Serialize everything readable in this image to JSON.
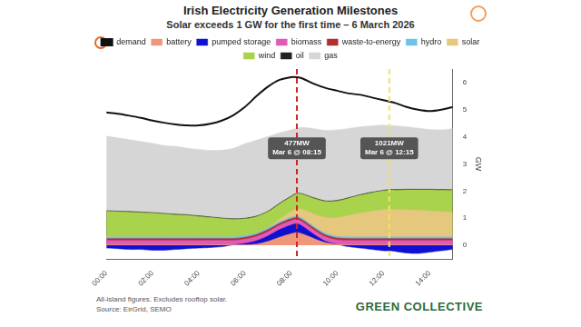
{
  "chart_data": {
    "type": "area",
    "title": "Irish Electricity Generation Milestones",
    "subtitle": "Solar exceeds 1 GW for the first time – 6 March 2026",
    "y_label": "GW",
    "x": [
      0,
      0.5,
      1,
      1.5,
      2,
      2.5,
      3,
      3.5,
      4,
      4.5,
      5,
      5.5,
      6,
      6.5,
      7,
      7.5,
      8,
      8.25,
      8.5,
      9,
      9.5,
      10,
      10.5,
      11,
      11.5,
      12,
      12.25,
      12.5,
      13,
      13.5,
      14,
      14.5,
      15
    ],
    "xlim": [
      0,
      15
    ],
    "xticks": [
      {
        "value": 0,
        "label": "00:00"
      },
      {
        "value": 2,
        "label": "02:00"
      },
      {
        "value": 4,
        "label": "04:00"
      },
      {
        "value": 6,
        "label": "06:00"
      },
      {
        "value": 8,
        "label": "08:00"
      },
      {
        "value": 10,
        "label": "10:00"
      },
      {
        "value": 12,
        "label": "12:00"
      },
      {
        "value": 14,
        "label": "14:00"
      }
    ],
    "ylim": [
      -0.5,
      6.5
    ],
    "yticks": [
      0,
      1,
      2,
      3,
      4,
      5,
      6
    ],
    "grid": false,
    "legend": "top",
    "stacked": true,
    "series": [
      {
        "name": "demand",
        "type": "line",
        "color": "#111111",
        "values": [
          4.9,
          4.85,
          4.78,
          4.7,
          4.6,
          4.52,
          4.46,
          4.42,
          4.42,
          4.48,
          4.6,
          4.8,
          5.1,
          5.5,
          5.85,
          6.1,
          6.2,
          6.2,
          6.15,
          5.95,
          5.8,
          5.7,
          5.6,
          5.55,
          5.45,
          5.35,
          5.3,
          5.25,
          5.1,
          5.0,
          4.95,
          5.0,
          5.1
        ]
      },
      {
        "name": "battery",
        "type": "area",
        "color": "#f0967a",
        "values": [
          0.02,
          0.02,
          0.02,
          0.02,
          0.02,
          0.02,
          0.02,
          0.02,
          0.02,
          0.02,
          0.02,
          0.02,
          0.02,
          0.05,
          0.15,
          0.3,
          0.43,
          0.477,
          0.42,
          0.25,
          0.1,
          0.04,
          0.02,
          0.02,
          0.02,
          0.02,
          0.02,
          0.02,
          0.02,
          0.02,
          0.02,
          0.02,
          0.02
        ]
      },
      {
        "name": "pumped storage",
        "type": "area",
        "color": "#1010d0",
        "values": [
          -0.1,
          -0.12,
          -0.15,
          -0.15,
          -0.18,
          -0.18,
          -0.15,
          -0.12,
          -0.1,
          -0.08,
          -0.05,
          0,
          0.05,
          0.12,
          0.2,
          0.28,
          0.32,
          0.32,
          0.28,
          0.15,
          0.05,
          0,
          -0.05,
          -0.1,
          -0.15,
          -0.2,
          -0.2,
          -0.22,
          -0.28,
          -0.3,
          -0.25,
          -0.2,
          -0.15
        ]
      },
      {
        "name": "biomass",
        "type": "area",
        "color": "#e05ab8",
        "values": [
          0.16,
          0.16,
          0.16,
          0.16,
          0.16,
          0.16,
          0.16,
          0.16,
          0.16,
          0.16,
          0.16,
          0.16,
          0.16,
          0.16,
          0.16,
          0.16,
          0.16,
          0.16,
          0.16,
          0.16,
          0.16,
          0.16,
          0.16,
          0.16,
          0.16,
          0.16,
          0.16,
          0.16,
          0.16,
          0.16,
          0.16,
          0.16,
          0.16
        ]
      },
      {
        "name": "waste-to-energy",
        "type": "area",
        "color": "#b02e2e",
        "values": [
          0.07,
          0.07,
          0.07,
          0.07,
          0.07,
          0.07,
          0.07,
          0.07,
          0.07,
          0.07,
          0.07,
          0.07,
          0.07,
          0.07,
          0.07,
          0.07,
          0.07,
          0.07,
          0.07,
          0.07,
          0.07,
          0.07,
          0.07,
          0.07,
          0.07,
          0.07,
          0.07,
          0.07,
          0.07,
          0.07,
          0.07,
          0.07,
          0.07
        ]
      },
      {
        "name": "hydro",
        "type": "area",
        "color": "#6cc3e8",
        "values": [
          0.06,
          0.06,
          0.06,
          0.06,
          0.06,
          0.06,
          0.06,
          0.06,
          0.06,
          0.06,
          0.06,
          0.06,
          0.06,
          0.06,
          0.06,
          0.06,
          0.06,
          0.06,
          0.06,
          0.06,
          0.06,
          0.06,
          0.06,
          0.06,
          0.06,
          0.06,
          0.06,
          0.06,
          0.06,
          0.06,
          0.06,
          0.06,
          0.06
        ]
      },
      {
        "name": "solar",
        "type": "area",
        "color": "#e6c77e",
        "values": [
          0,
          0,
          0,
          0,
          0,
          0,
          0,
          0,
          0,
          0,
          0,
          0,
          0,
          0,
          0.02,
          0.1,
          0.2,
          0.26,
          0.33,
          0.46,
          0.58,
          0.69,
          0.79,
          0.88,
          0.95,
          1.0,
          1.021,
          1.01,
          1.0,
          0.98,
          0.96,
          0.93,
          0.9
        ]
      },
      {
        "name": "wind",
        "type": "area",
        "color": "#a9d34c",
        "values": [
          0.95,
          0.93,
          0.92,
          0.9,
          0.88,
          0.85,
          0.82,
          0.8,
          0.76,
          0.72,
          0.68,
          0.65,
          0.62,
          0.6,
          0.58,
          0.56,
          0.55,
          0.55,
          0.56,
          0.58,
          0.6,
          0.62,
          0.64,
          0.66,
          0.68,
          0.7,
          0.71,
          0.72,
          0.74,
          0.76,
          0.78,
          0.8,
          0.82
        ]
      },
      {
        "name": "oil",
        "type": "area",
        "color": "#222222",
        "values": [
          0.02,
          0.02,
          0.02,
          0.02,
          0.02,
          0.02,
          0.02,
          0.02,
          0.02,
          0.02,
          0.02,
          0.02,
          0.02,
          0.02,
          0.02,
          0.02,
          0.02,
          0.02,
          0.02,
          0.02,
          0.02,
          0.02,
          0.02,
          0.02,
          0.02,
          0.02,
          0.02,
          0.02,
          0.02,
          0.02,
          0.02,
          0.02,
          0.02
        ]
      },
      {
        "name": "gas",
        "type": "area",
        "color": "#d6d6d6",
        "values": [
          2.75,
          2.7,
          2.65,
          2.6,
          2.55,
          2.5,
          2.5,
          2.45,
          2.45,
          2.45,
          2.5,
          2.6,
          2.75,
          2.8,
          2.75,
          2.6,
          2.45,
          2.4,
          2.45,
          2.55,
          2.6,
          2.6,
          2.55,
          2.5,
          2.45,
          2.4,
          2.35,
          2.35,
          2.3,
          2.25,
          2.2,
          2.2,
          2.25
        ]
      }
    ],
    "annotations": [
      {
        "x": 8.25,
        "label": "477MW",
        "sublabel": "Mar 6 @ 08:15",
        "color": "#cc2222"
      },
      {
        "x": 12.25,
        "label": "1021MW",
        "sublabel": "Mar 6 @ 12:15",
        "color": "#f2e45c"
      }
    ],
    "notes": [
      "All-island figures. Excludes rooftop solar.",
      "Source: EirGrid, SEMO"
    ],
    "brand": "GREEN COLLECTIVE"
  }
}
